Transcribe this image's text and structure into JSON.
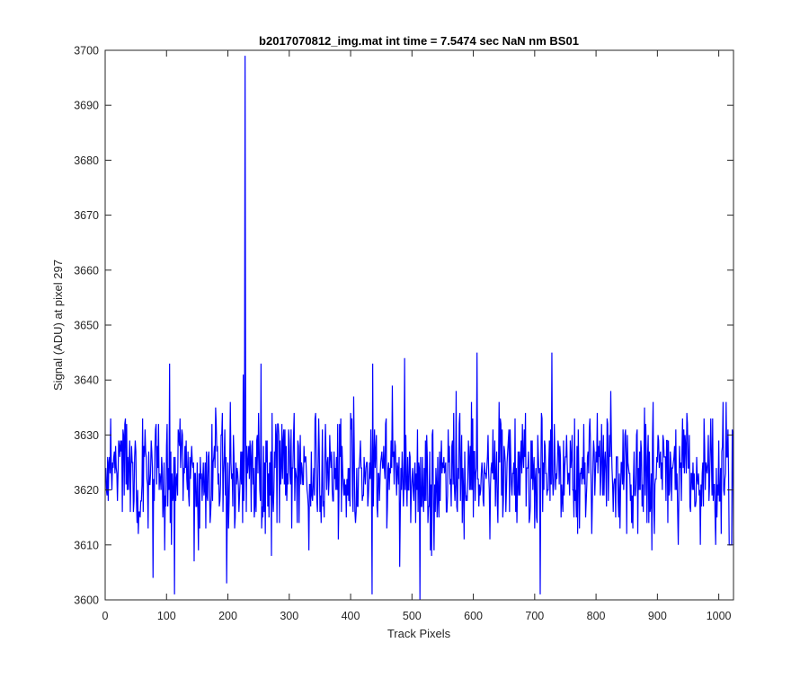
{
  "chart_data": {
    "type": "line",
    "title": "b2017070812_img.mat int time = 7.5474 sec  NaN nm BS01",
    "xlabel": "Track Pixels",
    "ylabel": "Signal (ADU) at pixel 297",
    "xlim": [
      0,
      1024
    ],
    "ylim": [
      3600,
      3700
    ],
    "xticks": [
      0,
      100,
      200,
      300,
      400,
      500,
      600,
      700,
      800,
      900,
      1000
    ],
    "yticks": [
      3600,
      3610,
      3620,
      3630,
      3640,
      3650,
      3660,
      3670,
      3680,
      3690,
      3700
    ],
    "grid": false,
    "legend": "none",
    "line_color": "#0000ff",
    "series": [
      {
        "x_start": 1,
        "x_step": 1,
        "y_mean": 3623,
        "y_noise_sd": 5.5,
        "point_count": 1024,
        "features": [
          {
            "x": 228,
            "y": 3699
          },
          {
            "x": 1017,
            "y": 3610
          },
          {
            "x": 1024,
            "y": 3610
          },
          {
            "x": 513,
            "y": 3600
          },
          {
            "x": 435,
            "y": 3601
          },
          {
            "x": 113,
            "y": 3601
          },
          {
            "x": 709,
            "y": 3601
          },
          {
            "x": 198,
            "y": 3603
          },
          {
            "x": 78,
            "y": 3604
          },
          {
            "x": 488,
            "y": 3601
          },
          {
            "x": 728,
            "y": 3645
          },
          {
            "x": 488,
            "y": 3644
          },
          {
            "x": 606,
            "y": 3645
          },
          {
            "x": 436,
            "y": 3643
          },
          {
            "x": 105,
            "y": 3643
          },
          {
            "x": 254,
            "y": 3643
          }
        ]
      }
    ]
  }
}
